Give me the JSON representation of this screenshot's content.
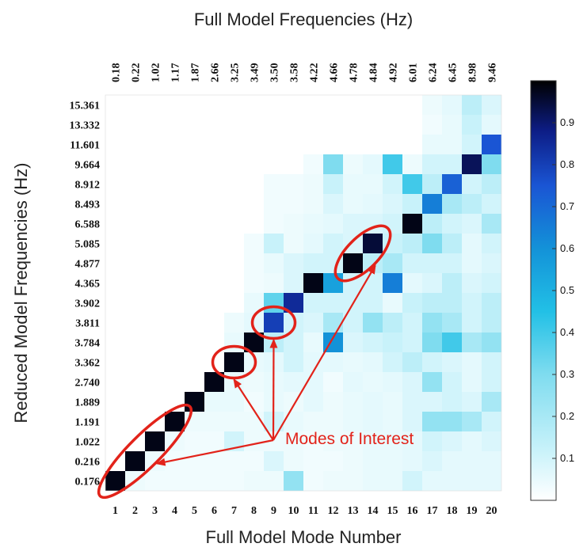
{
  "chart_data": {
    "type": "heatmap",
    "title": "Full Model Frequencies (Hz)",
    "xlabel": "Full Model Mode Number",
    "ylabel": "Reduced Model Frequencies (Hz)",
    "x_categories": [
      "1",
      "2",
      "3",
      "4",
      "5",
      "6",
      "7",
      "8",
      "9",
      "10",
      "11",
      "12",
      "13",
      "14",
      "15",
      "16",
      "17",
      "18",
      "19",
      "20"
    ],
    "x_top_labels": [
      "0.18",
      "0.22",
      "1.02",
      "1.17",
      "1.87",
      "2.66",
      "3.25",
      "3.49",
      "3.50",
      "3.58",
      "4.22",
      "4.66",
      "4.78",
      "4.84",
      "4.92",
      "6.01",
      "6.24",
      "6.45",
      "8.98",
      "9.46"
    ],
    "y_labels_top_to_bottom": [
      "15.361",
      "13.332",
      "11.601",
      "9.664",
      "8.912",
      "8.493",
      "6.588",
      "5.085",
      "4.877",
      "4.365",
      "3.902",
      "3.811",
      "3.784",
      "3.362",
      "2.740",
      "1.889",
      "1.191",
      "1.022",
      "0.216",
      "0.176"
    ],
    "values_rows_top_to_bottom": [
      [
        0,
        0,
        0,
        0,
        0,
        0,
        0,
        0,
        0,
        0,
        0,
        0,
        0,
        0,
        0,
        0,
        0.04,
        0.06,
        0.15,
        0.08
      ],
      [
        0,
        0,
        0,
        0,
        0,
        0,
        0,
        0,
        0,
        0,
        0,
        0,
        0,
        0,
        0,
        0,
        0.03,
        0.05,
        0.12,
        0.06
      ],
      [
        0,
        0,
        0,
        0,
        0,
        0,
        0,
        0,
        0,
        0,
        0,
        0,
        0,
        0,
        0,
        0,
        0.05,
        0.05,
        0.1,
        0.75
      ],
      [
        0,
        0,
        0,
        0,
        0,
        0,
        0,
        0,
        0,
        0,
        0.03,
        0.3,
        0.04,
        0.06,
        0.4,
        0.04,
        0.1,
        0.1,
        0.92,
        0.3
      ],
      [
        0,
        0,
        0,
        0,
        0,
        0,
        0,
        0,
        0.03,
        0.03,
        0.04,
        0.12,
        0.05,
        0.05,
        0.1,
        0.4,
        0.15,
        0.72,
        0.1,
        0.15
      ],
      [
        0,
        0,
        0,
        0,
        0,
        0,
        0,
        0,
        0.03,
        0.03,
        0.04,
        0.08,
        0.05,
        0.06,
        0.08,
        0.12,
        0.65,
        0.2,
        0.15,
        0.1
      ],
      [
        0,
        0,
        0,
        0,
        0,
        0,
        0,
        0,
        0.03,
        0.04,
        0.05,
        0.06,
        0.08,
        0.08,
        0.1,
        0.98,
        0.15,
        0.1,
        0.08,
        0.2
      ],
      [
        0,
        0,
        0,
        0,
        0,
        0,
        0,
        0.03,
        0.12,
        0.04,
        0.06,
        0.1,
        0.08,
        0.95,
        0.12,
        0.15,
        0.3,
        0.15,
        0.06,
        0.1
      ],
      [
        0,
        0,
        0,
        0,
        0,
        0,
        0,
        0.03,
        0.05,
        0.08,
        0.1,
        0.1,
        0.98,
        0.15,
        0.2,
        0.1,
        0.1,
        0.1,
        0.06,
        0.08
      ],
      [
        0,
        0,
        0,
        0,
        0,
        0,
        0,
        0.03,
        0.04,
        0.08,
        0.98,
        0.55,
        0.1,
        0.1,
        0.65,
        0.06,
        0.08,
        0.15,
        0.08,
        0.1
      ],
      [
        0,
        0,
        0,
        0,
        0,
        0,
        0,
        0.05,
        0.35,
        0.85,
        0.1,
        0.1,
        0.1,
        0.1,
        0.05,
        0.12,
        0.15,
        0.15,
        0.1,
        0.15
      ],
      [
        0,
        0,
        0,
        0,
        0,
        0,
        0.04,
        0.06,
        0.8,
        0.1,
        0.08,
        0.2,
        0.1,
        0.25,
        0.15,
        0.1,
        0.25,
        0.2,
        0.1,
        0.15
      ],
      [
        0,
        0,
        0,
        0,
        0,
        0,
        0.05,
        0.98,
        0.15,
        0.1,
        0.05,
        0.6,
        0.08,
        0.1,
        0.12,
        0.1,
        0.3,
        0.4,
        0.2,
        0.25
      ],
      [
        0,
        0,
        0,
        0,
        0,
        0,
        0.98,
        0.05,
        0.06,
        0.1,
        0.06,
        0.06,
        0.05,
        0.06,
        0.1,
        0.15,
        0.1,
        0.08,
        0.06,
        0.1
      ],
      [
        0,
        0,
        0,
        0,
        0,
        0.98,
        0.05,
        0.04,
        0.05,
        0.06,
        0.06,
        0.03,
        0.06,
        0.05,
        0.06,
        0.08,
        0.25,
        0.1,
        0.06,
        0.1
      ],
      [
        0,
        0,
        0,
        0,
        0.98,
        0.05,
        0.05,
        0.03,
        0.05,
        0.04,
        0.06,
        0.04,
        0.05,
        0.06,
        0.05,
        0.08,
        0.08,
        0.1,
        0.08,
        0.2
      ],
      [
        0,
        0,
        0,
        0.98,
        0.04,
        0.04,
        0.04,
        0.04,
        0.1,
        0.05,
        0.04,
        0.04,
        0.05,
        0.06,
        0.05,
        0.08,
        0.25,
        0.25,
        0.2,
        0.1
      ],
      [
        0,
        0,
        0.98,
        0.04,
        0.03,
        0.03,
        0.1,
        0.04,
        0.04,
        0.04,
        0.03,
        0.04,
        0.04,
        0.05,
        0.05,
        0.06,
        0.1,
        0.08,
        0.06,
        0.08
      ],
      [
        0,
        0.98,
        0.04,
        0.03,
        0.03,
        0.03,
        0.03,
        0.03,
        0.08,
        0.04,
        0.03,
        0.03,
        0.04,
        0.05,
        0.05,
        0.06,
        0.08,
        0.06,
        0.06,
        0.06
      ],
      [
        0.98,
        0.04,
        0.03,
        0.03,
        0.03,
        0.03,
        0.03,
        0.04,
        0.04,
        0.25,
        0.03,
        0.04,
        0.04,
        0.05,
        0.05,
        0.1,
        0.06,
        0.06,
        0.06,
        0.06
      ]
    ],
    "colorbar": {
      "min": 0,
      "max": 1,
      "ticks": [
        "0.1",
        "0.2",
        "0.3",
        "0.4",
        "0.5",
        "0.6",
        "0.7",
        "0.8",
        "0.9"
      ]
    },
    "annotation": {
      "text": "Modes of Interest",
      "circled_groups": [
        {
          "x": [
            1,
            4
          ],
          "y": [
            "0.176",
            "1.191"
          ]
        },
        {
          "x": [
            7
          ],
          "y": [
            "3.362"
          ]
        },
        {
          "x": [
            9
          ],
          "y": [
            "3.811"
          ]
        },
        {
          "x": [
            13,
            14
          ],
          "y": [
            "4.877",
            "5.085"
          ]
        }
      ],
      "color": "#e2231a"
    },
    "grid": false
  }
}
